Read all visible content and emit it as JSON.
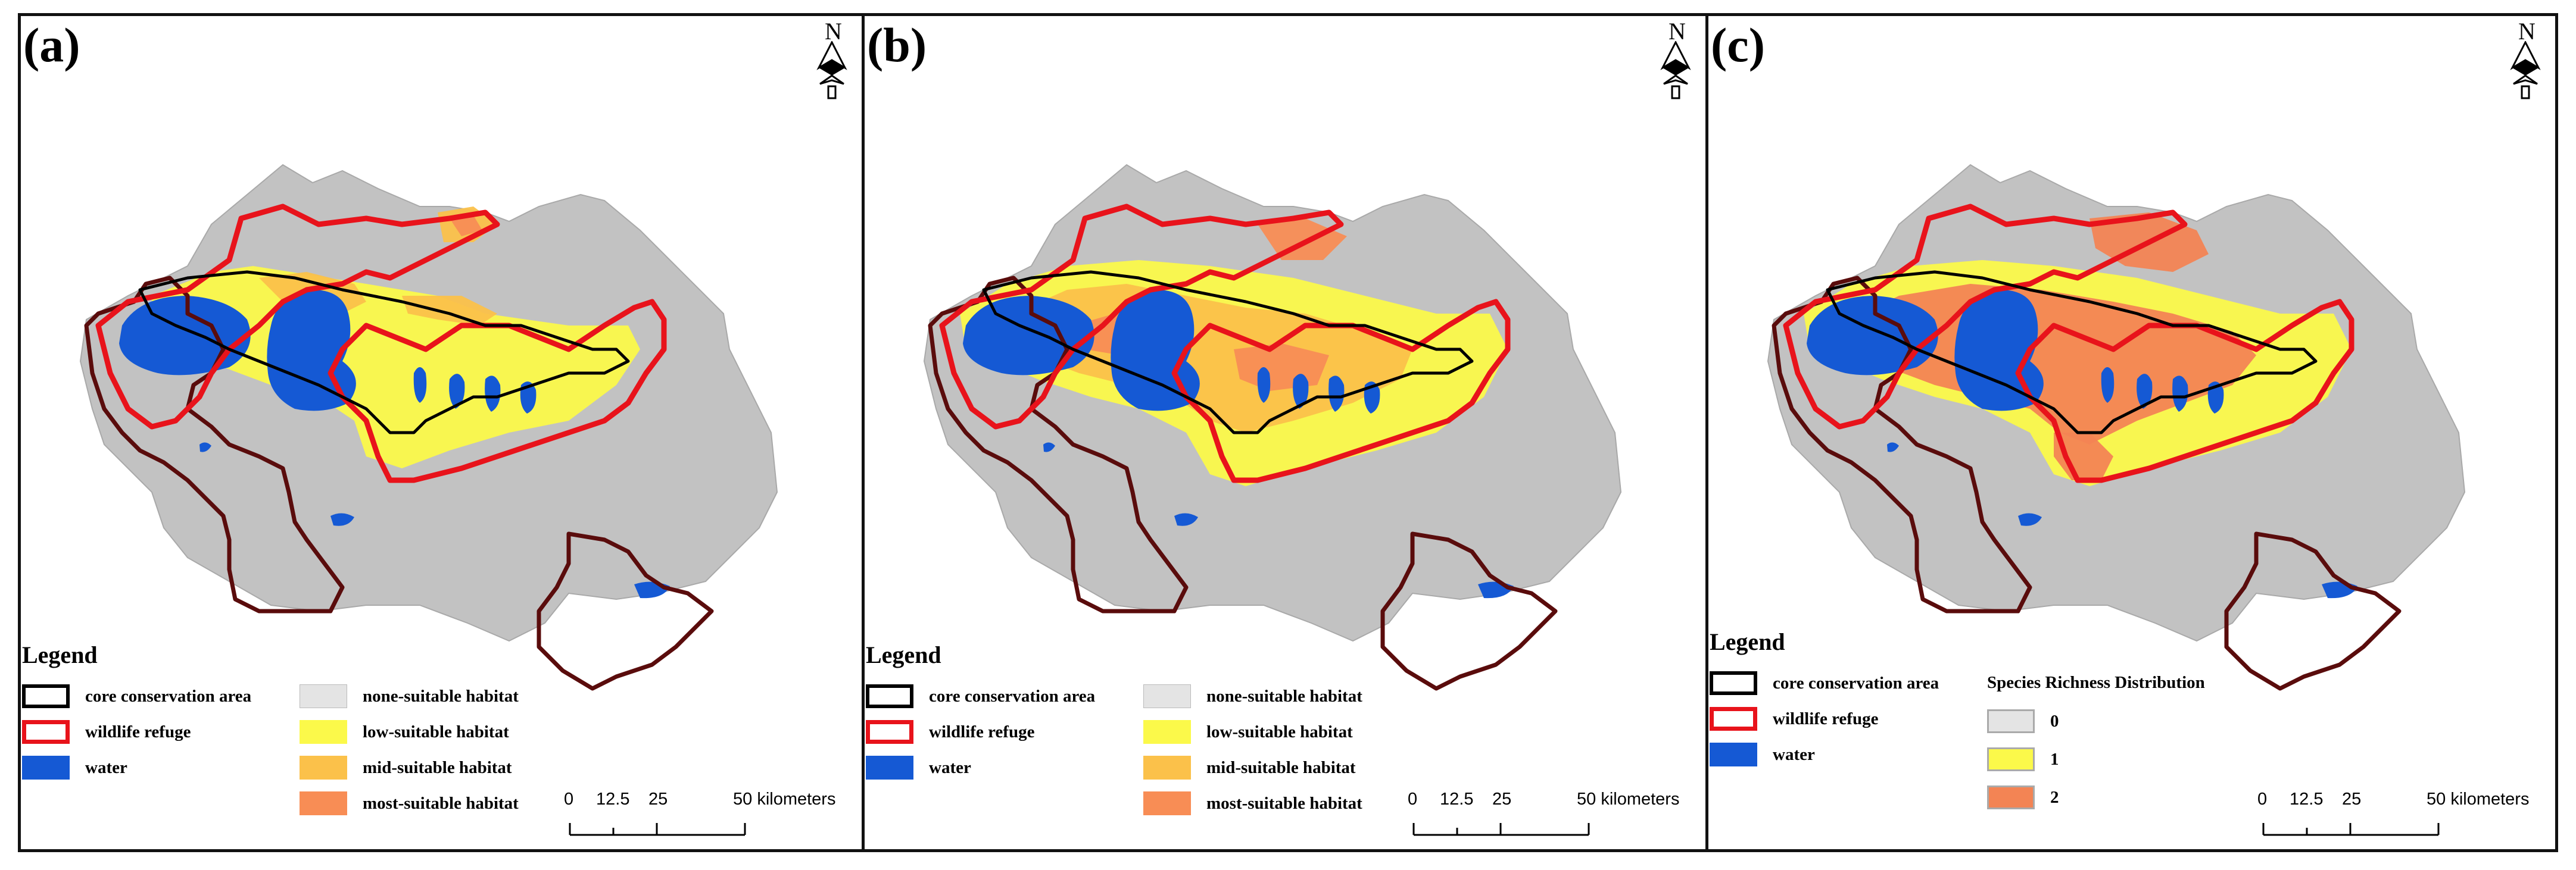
{
  "panels": [
    {
      "letter": "(a)",
      "variant": "suitability",
      "north_label": "N",
      "legend": {
        "title": "Legend",
        "boundaries": [
          {
            "label": "core conservation area",
            "symbol": "core"
          },
          {
            "label": "wildlife refuge",
            "symbol": "refuge"
          },
          {
            "label": "water",
            "symbol": "water"
          }
        ],
        "classes": [
          {
            "label": "none-suitable habitat",
            "color": "#e4e4e4"
          },
          {
            "label": "low-suitable habitat",
            "color": "#fbf94a"
          },
          {
            "label": "mid-suitable habitat",
            "color": "#fbc14a"
          },
          {
            "label": "most-suitable habitat",
            "color": "#f88d55"
          }
        ]
      },
      "scale": {
        "ticks": [
          "0",
          "12.5",
          "25",
          "50 kilometers"
        ]
      }
    },
    {
      "letter": "(b)",
      "variant": "suitability-high",
      "north_label": "N",
      "legend": {
        "title": "Legend",
        "boundaries": [
          {
            "label": "core conservation area",
            "symbol": "core"
          },
          {
            "label": "wildlife refuge",
            "symbol": "refuge"
          },
          {
            "label": "water",
            "symbol": "water"
          }
        ],
        "classes": [
          {
            "label": "none-suitable habitat",
            "color": "#e4e4e4"
          },
          {
            "label": "low-suitable habitat",
            "color": "#fbf94a"
          },
          {
            "label": "mid-suitable habitat",
            "color": "#fbc14a"
          },
          {
            "label": "most-suitable habitat",
            "color": "#f88d55"
          }
        ]
      },
      "scale": {
        "ticks": [
          "0",
          "12.5",
          "25",
          "50 kilometers"
        ]
      }
    },
    {
      "letter": "(c)",
      "variant": "richness",
      "north_label": "N",
      "legend": {
        "title": "Legend",
        "boundaries": [
          {
            "label": "core conservation area",
            "symbol": "core"
          },
          {
            "label": "wildlife refuge",
            "symbol": "refuge"
          },
          {
            "label": "water",
            "symbol": "water"
          }
        ],
        "classes_title": "Species Richness Distribution",
        "classes": [
          {
            "label": "0",
            "color": "#e4e4e4"
          },
          {
            "label": "1",
            "color": "#fbf94a"
          },
          {
            "label": "2",
            "color": "#f38454"
          }
        ]
      },
      "scale": {
        "ticks": [
          "0",
          "12.5",
          "25",
          "50 kilometers"
        ]
      }
    }
  ],
  "colors": {
    "terrain": "#c2c2c2",
    "water": "#1559d4",
    "core_boundary": "#000000",
    "refuge_boundary": "#e8131b",
    "outer_boundary": "#5a0c0c",
    "low": "#fbf94a",
    "mid": "#fbc14a",
    "most": "#f88d55"
  }
}
